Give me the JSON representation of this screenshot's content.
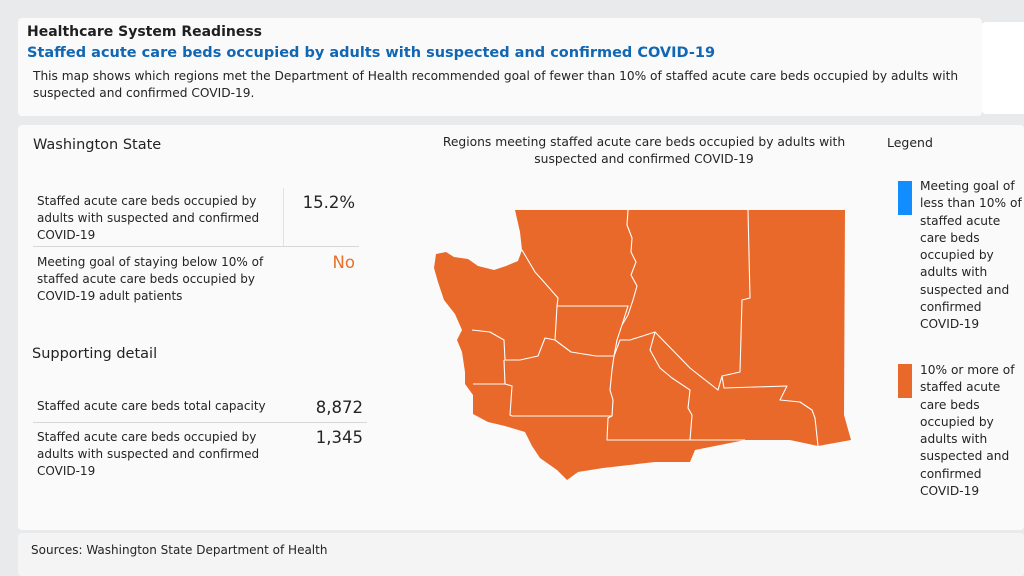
{
  "header": {
    "title": "Healthcare System Readiness",
    "subtitle": "Staffed acute care beds occupied by adults with suspected and confirmed COVID-19",
    "description": "This map shows which regions met the Department of Health recommended goal of fewer than 10% of staffed acute care beds occupied by adults with suspected and confirmed COVID-19."
  },
  "state_panel": {
    "heading": "Washington State",
    "occupied_pct_label": "Staffed acute care beds occupied by adults with suspected and confirmed COVID-19",
    "occupied_pct_value": "15.2%",
    "goal_label": "Meeting goal of staying below 10% of staffed acute care beds occupied by COVID-19 adult patients",
    "goal_value": "No"
  },
  "supporting": {
    "heading": "Supporting detail",
    "capacity_label": "Staffed acute care beds total capacity",
    "capacity_value": "8,872",
    "occupied_label": "Staffed acute care beds occupied by adults with suspected and confirmed COVID-19",
    "occupied_value": "1,345"
  },
  "map": {
    "title": "Regions meeting staffed acute care beds occupied by adults with suspected and confirmed COVID-19",
    "region_color": "#e8692a",
    "all_regions_status": "10% or more"
  },
  "legend": {
    "title": "Legend",
    "items": [
      {
        "color": "#118dff",
        "label": "Meeting goal of less than 10% of staffed acute care beds occupied by adults with suspected and confirmed COVID-19"
      },
      {
        "color": "#e8692a",
        "label": "10% or more of staffed acute care beds occupied by adults with suspected and confirmed COVID-19"
      }
    ]
  },
  "footer": {
    "sources": "Sources: Washington State Department of Health"
  }
}
